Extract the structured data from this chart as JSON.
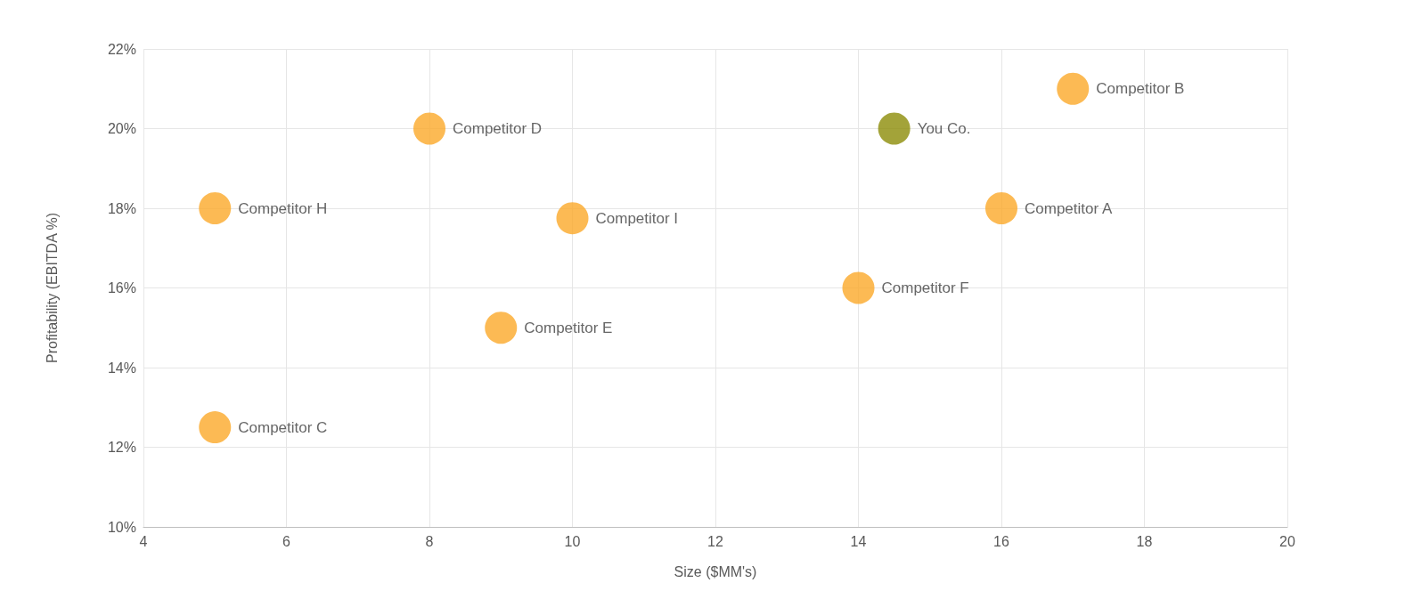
{
  "chart_data": {
    "type": "scatter",
    "xlabel": "Size ($MM's)",
    "ylabel": "Profitability (EBITDA %)",
    "series": [
      {
        "name": "Competitor H",
        "color": "#fba929",
        "x": [
          5
        ],
        "values": [
          18
        ]
      },
      {
        "name": "Competitor C",
        "color": "#fba929",
        "x": [
          5
        ],
        "values": [
          12.5
        ]
      },
      {
        "name": "Competitor D",
        "color": "#fba929",
        "x": [
          8
        ],
        "values": [
          20
        ]
      },
      {
        "name": "Competitor E",
        "color": "#fba929",
        "x": [
          9
        ],
        "values": [
          15
        ]
      },
      {
        "name": "Competitor I",
        "color": "#fba929",
        "x": [
          10
        ],
        "values": [
          17.75
        ]
      },
      {
        "name": "Competitor F",
        "color": "#fba929",
        "x": [
          14
        ],
        "values": [
          16
        ]
      },
      {
        "name": "You Co.",
        "color": "#8c8c08",
        "x": [
          14.5
        ],
        "values": [
          20
        ]
      },
      {
        "name": "Competitor A",
        "color": "#fba929",
        "x": [
          16
        ],
        "values": [
          18
        ]
      },
      {
        "name": "Competitor B",
        "color": "#fba929",
        "x": [
          17
        ],
        "values": [
          21
        ]
      }
    ],
    "xlim": [
      4,
      20
    ],
    "xticks": [
      4,
      6,
      8,
      10,
      12,
      14,
      16,
      18,
      20
    ],
    "ylim": [
      10,
      22
    ],
    "yticks": [
      {
        "value": 10,
        "label": "10%"
      },
      {
        "value": 12,
        "label": "12%"
      },
      {
        "value": 14,
        "label": "14%"
      },
      {
        "value": 16,
        "label": "16%"
      },
      {
        "value": 18,
        "label": "18%"
      },
      {
        "value": 20,
        "label": "20%"
      },
      {
        "value": 22,
        "label": "22%"
      }
    ],
    "grid": true,
    "legend": false,
    "marker": "circle"
  }
}
